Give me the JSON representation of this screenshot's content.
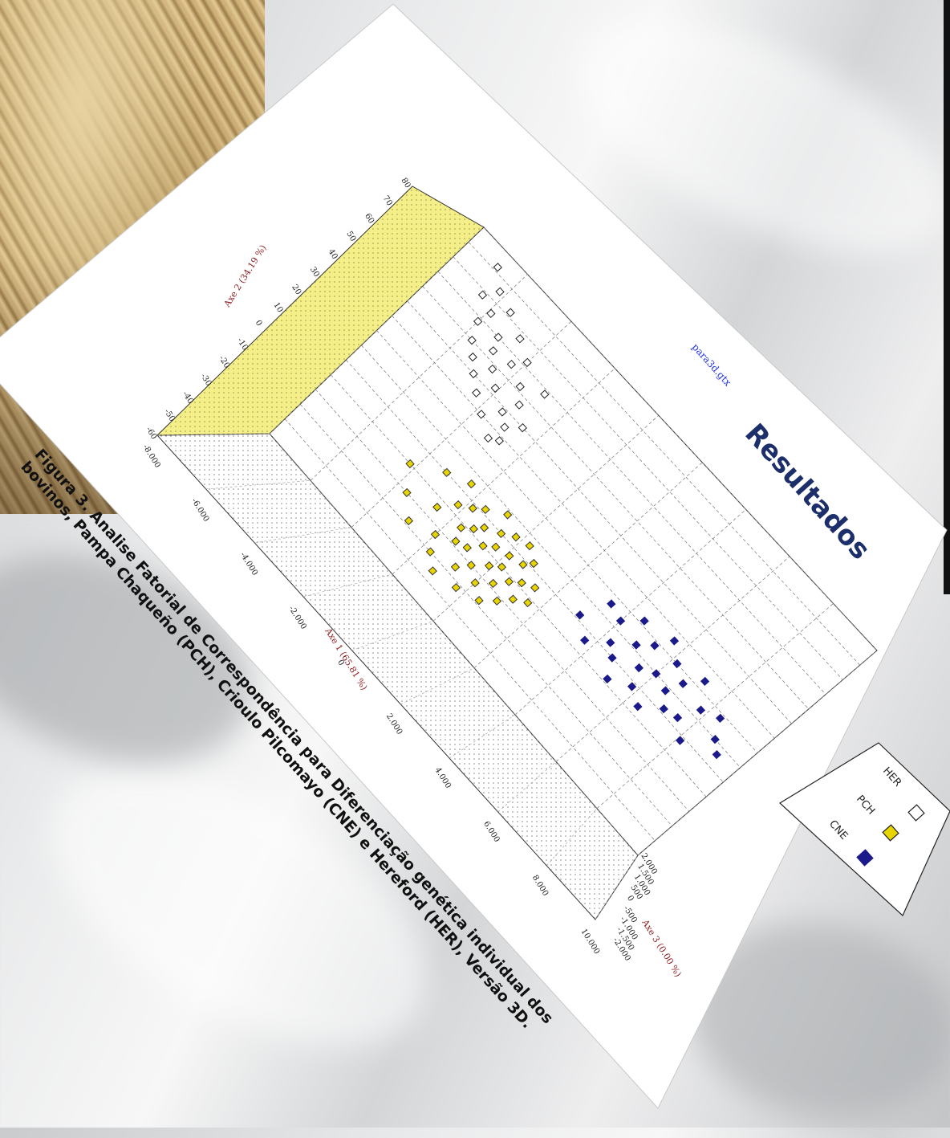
{
  "slide": {
    "title": "Resultados",
    "file_label": "para3d.gtx",
    "caption_line1": "Figura 3. Analise Fatorial de Correspondência para Diferenciação genética individual dos",
    "caption_line2": "bovinos, Pampa Chaqueño (PCH), Crioulo Pilcomayo (CNE) e Hereford (HER), Versão 3D."
  },
  "chart_data": {
    "type": "scatter",
    "title": "para3d.gtx",
    "xlabel": "Axe 1 (65.81 %)",
    "ylabel": "Axe 2 (34.19 %)",
    "zlabel": "Axe 3 (0.00 %)",
    "x_ticks": [
      "-8.000",
      "-6.000",
      "-4.000",
      "-2.000",
      "0",
      "2.000",
      "4.000",
      "6.000",
      "8.000",
      "10.000"
    ],
    "y_ticks": [
      "-60",
      "-50",
      "-40",
      "-30",
      "-20",
      "-10",
      "0",
      "10",
      "20",
      "30",
      "40",
      "50",
      "60",
      "70",
      "80"
    ],
    "z_ticks": [
      "2.000",
      "1.500",
      "1.000",
      "500",
      "0",
      "-500",
      "-1.000",
      "-1.500",
      "-2.000"
    ],
    "xlim": [
      -8.0,
      10.0
    ],
    "ylim": [
      -60,
      80
    ],
    "legend_position": "bottom-right",
    "colors": {
      "HER": "#ffffff",
      "PCH": "#e8d400",
      "CNE": "#1a1a8a",
      "wall": "#f5ef8a"
    },
    "series": [
      {
        "name": "HER",
        "x": [
          -6.8,
          -6.5,
          -6.2,
          -6.0,
          -5.9,
          -5.7,
          -5.5,
          -5.3,
          -5.2,
          -5.0,
          -4.9,
          -4.7,
          -4.6,
          -4.4,
          -4.3,
          -4.1,
          -4.0,
          -3.8,
          -3.6,
          -3.4,
          -3.2,
          -3.1,
          -3.0,
          -2.9,
          -2.8,
          -2.6
        ],
        "y": [
          72,
          58,
          65,
          48,
          55,
          40,
          62,
          35,
          50,
          44,
          30,
          57,
          38,
          25,
          46,
          33,
          52,
          20,
          42,
          28,
          36,
          15,
          24,
          48,
          18,
          30
        ]
      },
      {
        "name": "PCH",
        "x": [
          -4.2,
          -3.6,
          -3.2,
          -2.9,
          -2.6,
          -2.4,
          -2.2,
          -2.0,
          -1.8,
          -1.7,
          -1.6,
          -1.5,
          -1.4,
          -1.3,
          -1.2,
          -1.1,
          -1.0,
          -0.9,
          -0.8,
          -0.7,
          -0.6,
          -0.5,
          -0.4,
          -0.3,
          -0.2,
          -0.1,
          0.0,
          0.1,
          0.2,
          0.3,
          0.4,
          0.5,
          0.6,
          0.7,
          0.8,
          0.9,
          1.0,
          1.2,
          1.4,
          1.6
        ],
        "y": [
          -20,
          -30,
          -10,
          -38,
          -24,
          -5,
          -16,
          -33,
          -12,
          -40,
          -22,
          -8,
          -28,
          -18,
          -45,
          -14,
          -26,
          -2,
          -36,
          -20,
          -10,
          -30,
          -16,
          -42,
          -6,
          -24,
          -34,
          -14,
          -20,
          -4,
          -28,
          -38,
          -12,
          -22,
          -8,
          -32,
          -18,
          -26,
          -15,
          -22
        ]
      },
      {
        "name": "CNE",
        "x": [
          3.0,
          3.4,
          3.7,
          4.0,
          4.3,
          4.5,
          4.7,
          4.9,
          5.1,
          5.3,
          5.5,
          5.6,
          5.8,
          6.0,
          6.2,
          6.4,
          6.6,
          6.8,
          7.0,
          7.2,
          7.5,
          7.8,
          8.1,
          8.4,
          8.8,
          9.2
        ],
        "y": [
          -8,
          6,
          -14,
          4,
          -6,
          12,
          -10,
          2,
          -18,
          8,
          -4,
          16,
          -12,
          0,
          10,
          -16,
          -2,
          6,
          -8,
          14,
          -6,
          4,
          -12,
          8,
          0,
          -4
        ]
      }
    ]
  }
}
